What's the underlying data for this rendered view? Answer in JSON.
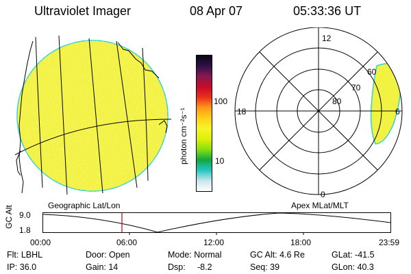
{
  "header": {
    "instrument": "Ultraviolet Imager",
    "date": "08 Apr 07",
    "time": "05:33:36 UT"
  },
  "colorbar": {
    "unit_label": "photon cm⁻²s⁻¹",
    "ticks": [
      "100",
      "10"
    ],
    "colors": [
      "#ffffff",
      "#c8e6e8",
      "#22c6c6",
      "#10a840",
      "#88e010",
      "#dff008",
      "#f7f428",
      "#ffd018",
      "#ff9818",
      "#e8301a",
      "#c80a2a",
      "#881850",
      "#301048",
      "#080818"
    ]
  },
  "geo_panel": {
    "label": "Geographic Lat/Lon",
    "fill_color": "#f2f242",
    "border_color": "#2fd0d8"
  },
  "polar_panel": {
    "label": "Apex MLat/MLT",
    "mlt_labels": {
      "top": "12",
      "left": "18",
      "right": "6",
      "bottom": "0"
    },
    "mlat_labels": [
      "80",
      "70",
      "60"
    ]
  },
  "timeline": {
    "axis_label": "GC Alt",
    "y_ticks": [
      "9.0",
      "1.8"
    ],
    "x_ticks": [
      "00:00",
      "06:00",
      "12:00",
      "18:00",
      "23:59"
    ],
    "current_time_color": "#cc0000"
  },
  "info": {
    "filter": "Flt: LBHL",
    "ip": "IP: 36.0",
    "door": "Door: Open",
    "gain": "Gain: 14",
    "mode": "Mode: Normal",
    "dsp_label": "Dsp:",
    "dsp_value": "-8.2",
    "gc_alt": "GC Alt: 4.6 Re",
    "seq": "Seq: 39",
    "glat": "GLat: -41.5",
    "glon": "GLon: 40.3"
  }
}
